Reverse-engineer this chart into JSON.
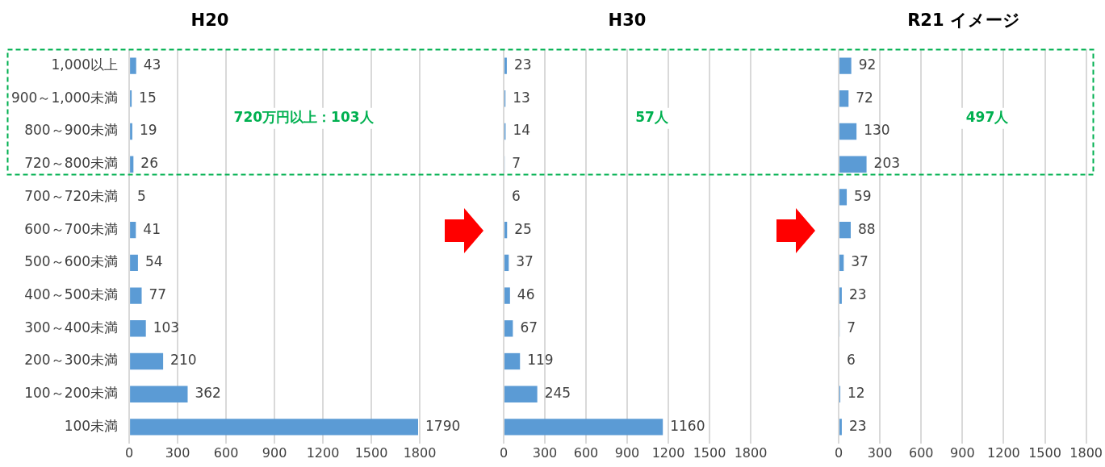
{
  "chart_data": [
    {
      "type": "bar",
      "orientation": "horizontal",
      "title": "H20",
      "categories": [
        "1,000以上",
        "900～1,000未満",
        "800～900未満",
        "720～800未満",
        "700～720未満",
        "600～700未満",
        "500～600未満",
        "400～500未満",
        "300～400未満",
        "200～300未満",
        "100～200未満",
        "100未満"
      ],
      "values": [
        43,
        15,
        19,
        26,
        5,
        41,
        54,
        77,
        103,
        210,
        362,
        1790
      ],
      "color": "#5b9bd5",
      "xlim": [
        0,
        1800
      ],
      "xticks": [
        0,
        300,
        600,
        900,
        1200,
        1500,
        1800
      ],
      "grid": "x",
      "data_labels": true,
      "annotations": [
        "720万円以上：103人"
      ]
    },
    {
      "type": "bar",
      "orientation": "horizontal",
      "title": "H30",
      "categories": [
        null,
        null,
        null,
        null,
        null,
        null,
        null,
        null,
        null,
        null,
        null,
        null
      ],
      "values": [
        23,
        13,
        14,
        7,
        6,
        25,
        37,
        46,
        67,
        119,
        245,
        1160
      ],
      "color": "#5b9bd5",
      "xlim": [
        0,
        1800
      ],
      "xticks": [
        0,
        300,
        600,
        900,
        1200,
        1500,
        1800
      ],
      "grid": "x",
      "data_labels": true,
      "tick_labels": "x",
      "annotations": [
        "57人"
      ]
    },
    {
      "type": "bar",
      "orientation": "horizontal",
      "title": "R21 イメージ",
      "categories": [
        null,
        null,
        null,
        null,
        null,
        null,
        null,
        null,
        null,
        null,
        null,
        null
      ],
      "values": [
        92,
        72,
        130,
        203,
        59,
        88,
        37,
        23,
        7,
        6,
        12,
        23
      ],
      "color": "#5b9bd5",
      "xlim": [
        0,
        1800
      ],
      "xticks": [
        0,
        300,
        600,
        900,
        1200,
        1500,
        1800
      ],
      "grid": "x",
      "data_labels": true,
      "tick_labels": "x",
      "annotations": [
        "497人"
      ]
    }
  ]
}
